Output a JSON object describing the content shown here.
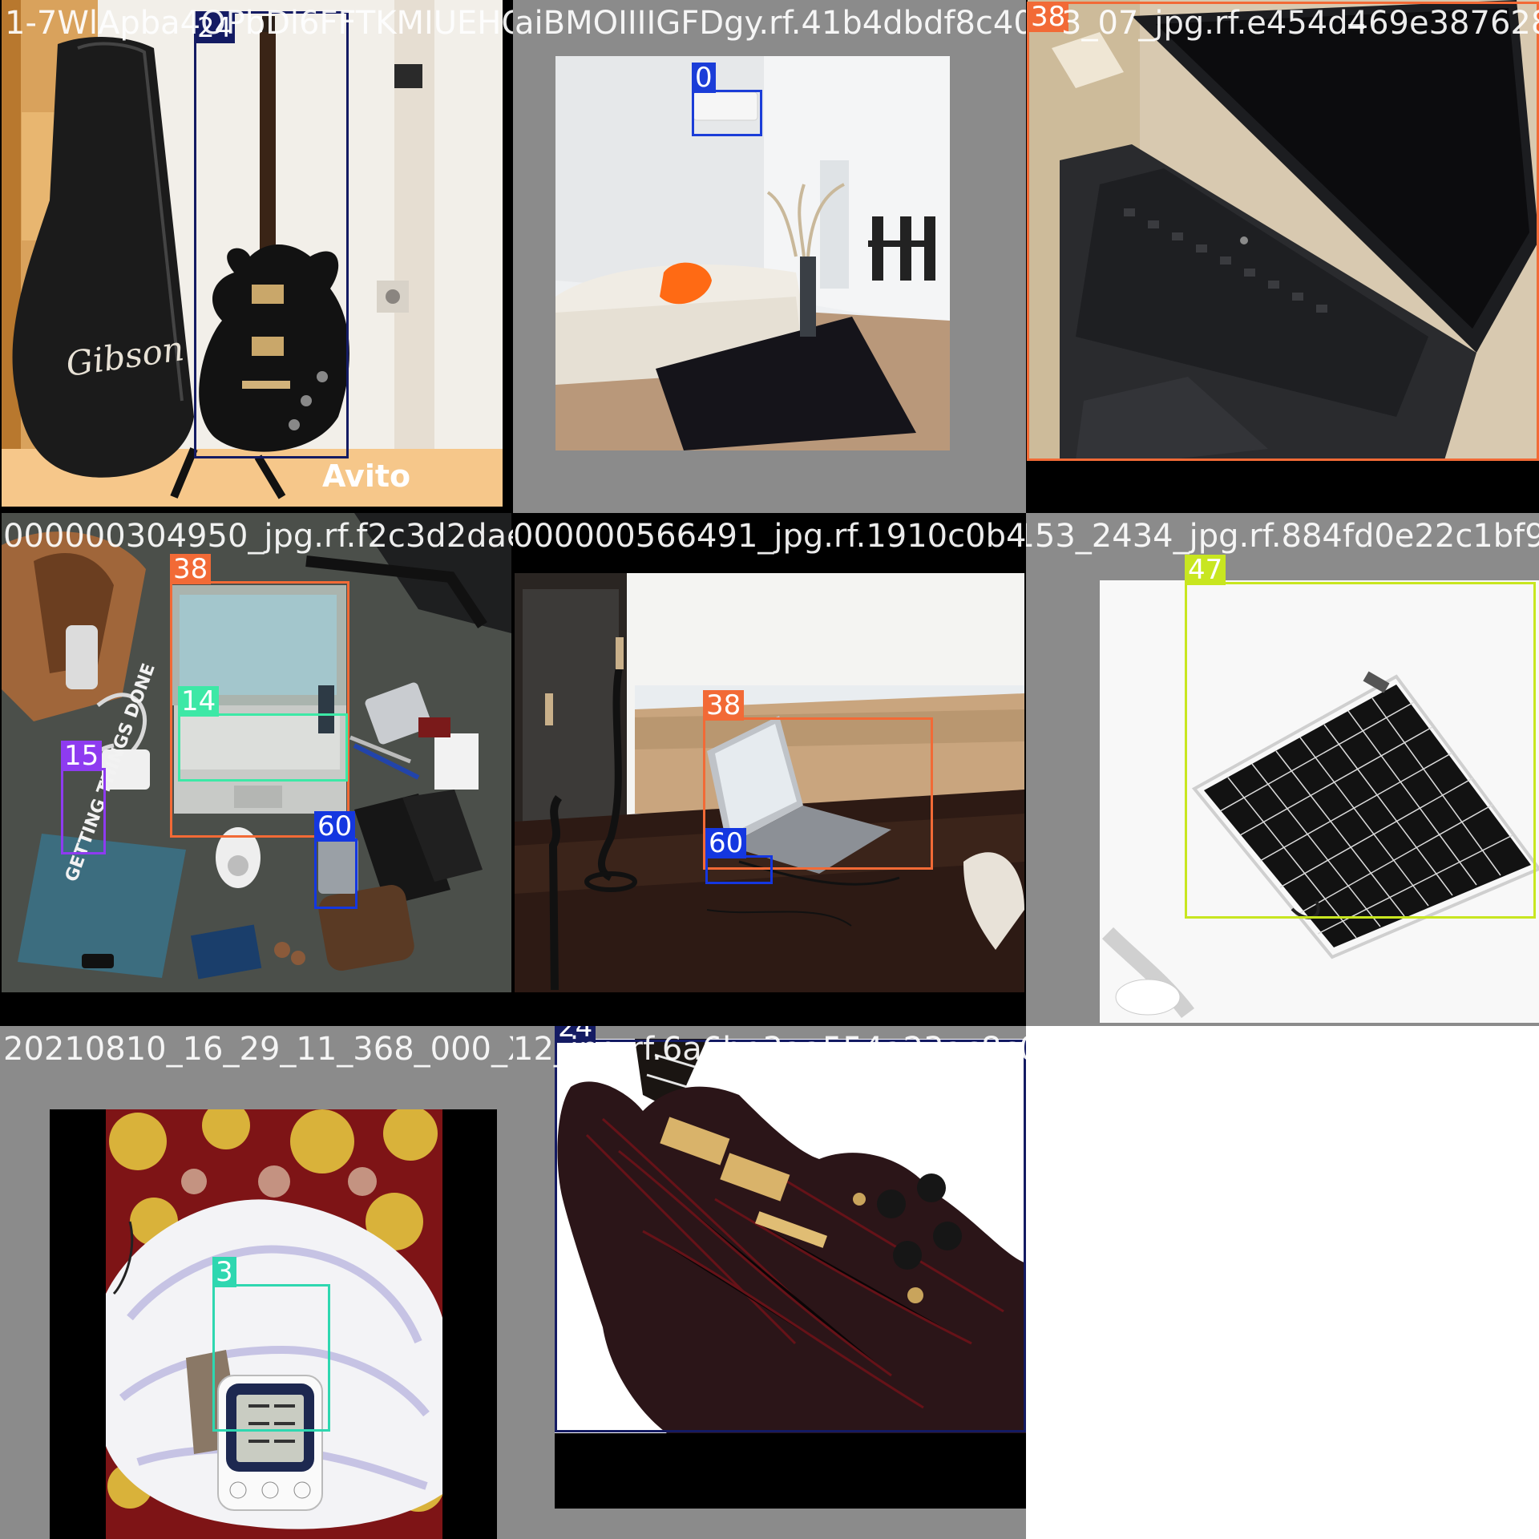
{
  "colors": {
    "class_0": "#1b3dd8",
    "class_3": "#2ed7b0",
    "class_14": "#3de8a6",
    "class_15": "#8e3bf0",
    "class_24": "#141b63",
    "class_38": "#f26a36",
    "class_47": "#c8e620",
    "class_60": "#1437e0",
    "letterbox_gray": "#8b8b8b",
    "letterbox_black": "#000000"
  },
  "tiles": [
    {
      "filename": "1-7WlApba4OPbDl6FFTKMIUEHQ4biB_donald-Dog.rf.41b4dbdf8c40650b3",
      "scene": "guitar-case-and-electric-guitar",
      "watermark": "Avito",
      "case_lettering": "Gibson",
      "boxes": [
        {
          "class_id": "24",
          "color": "#141b63"
        }
      ]
    },
    {
      "filename": "aiBMOIIIIGFDgy.rf.41b4dbdf8c40650b3",
      "scene": "living-room-with-air-conditioner",
      "boxes": [
        {
          "class_id": "0",
          "color": "#1b3dd8"
        }
      ]
    },
    {
      "filename": "3_07_jpg.rf.e454d469e387628cef39cc",
      "scene": "hp-laptop-on-table",
      "boxes": [
        {
          "class_id": "38",
          "color": "#f26a36"
        }
      ]
    },
    {
      "filename": "000000304950_jpg.rf.f2c3d2daeb5cab3668d0",
      "scene": "flat-lay-of-gadgets",
      "book_title": "GETTING THINGS DONE",
      "boxes": [
        {
          "class_id": "38",
          "color": "#f26a36"
        },
        {
          "class_id": "14",
          "color": "#3de8a6"
        },
        {
          "class_id": "15",
          "color": "#8e3bf0"
        },
        {
          "class_id": "60",
          "color": "#1437e0"
        }
      ]
    },
    {
      "filename": "000000566491_jpg.rf.1910c0b4f0936d253_2434",
      "scene": "laptop-on-desk-by-window",
      "boxes": [
        {
          "class_id": "38",
          "color": "#f26a36"
        },
        {
          "class_id": "60",
          "color": "#1437e0"
        }
      ]
    },
    {
      "filename": "1153_2434_jpg.rf.884fd0e22c1bf9988",
      "scene": "solar-panel",
      "boxes": [
        {
          "class_id": "47",
          "color": "#c8e620"
        }
      ]
    },
    {
      "filename": "20210810_16_29_11_368_000_XJvJvh2_jpg.rf.",
      "scene": "blood-pressure-monitor-on-rug",
      "boxes": [
        {
          "class_id": "3",
          "color": "#2ed7b0"
        }
      ]
    },
    {
      "filename": "12_jpg.rf.6a6be3aa554a23ac8c04298bfc2",
      "scene": "red-black-sg-guitar",
      "boxes": [
        {
          "class_id": "24",
          "color": "#141b63"
        }
      ]
    }
  ]
}
